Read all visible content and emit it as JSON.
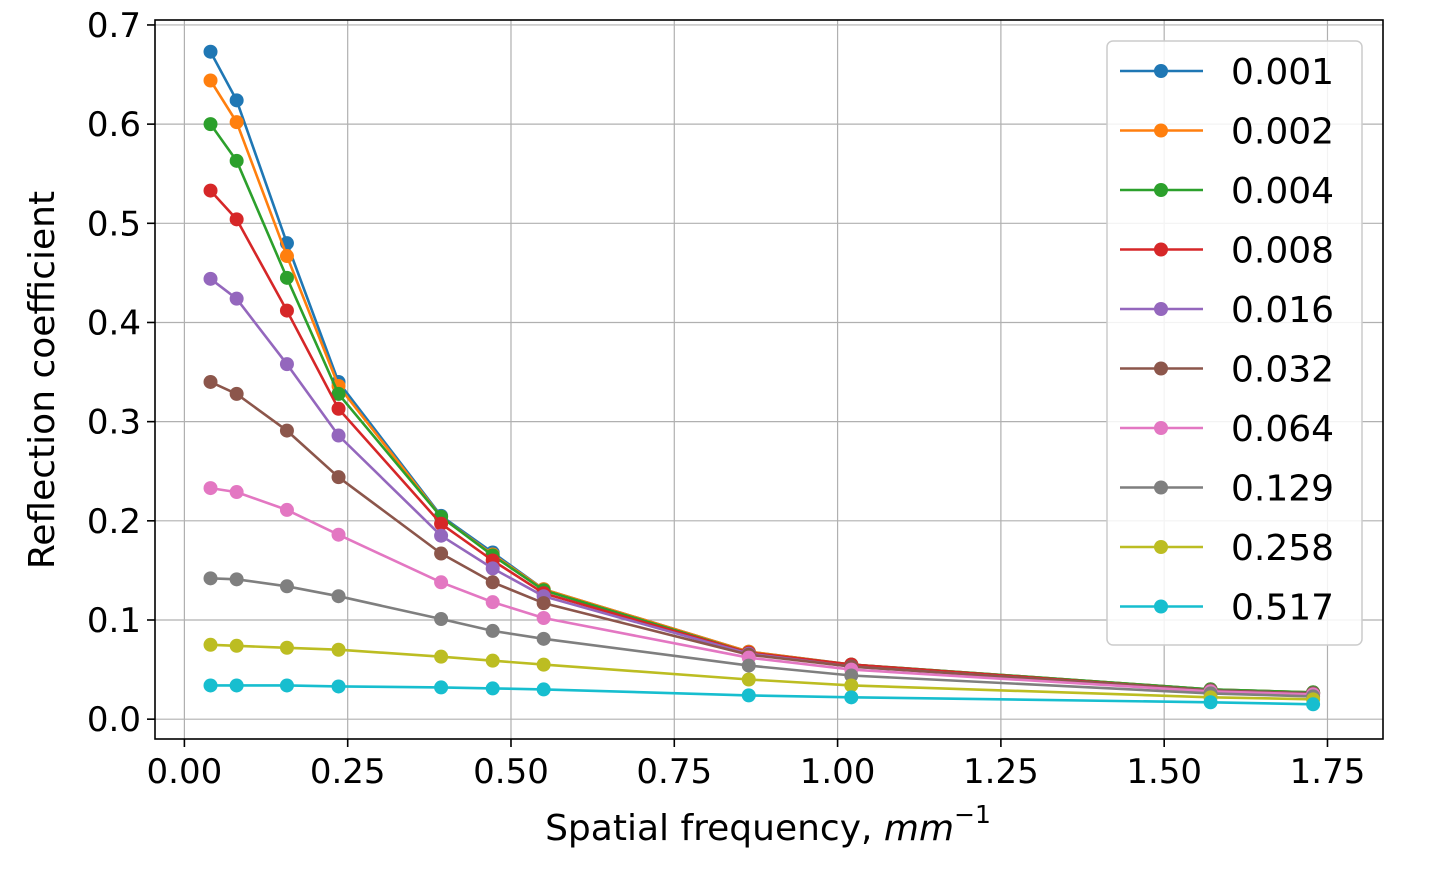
{
  "chart_data": {
    "type": "line",
    "title": "",
    "xlabel": "Spatial frequency, ",
    "xlabel_unit": "mm",
    "xlabel_unit_sup": "−1",
    "ylabel": "Reflection coefficient",
    "xlim": [
      -0.045,
      1.835
    ],
    "ylim": [
      -0.02,
      0.705
    ],
    "xticks": [
      0.0,
      0.25,
      0.5,
      0.75,
      1.0,
      1.25,
      1.5,
      1.75
    ],
    "xtick_labels": [
      "0.00",
      "0.25",
      "0.50",
      "0.75",
      "1.00",
      "1.25",
      "1.50",
      "1.75"
    ],
    "yticks": [
      0.0,
      0.1,
      0.2,
      0.3,
      0.4,
      0.5,
      0.6,
      0.7
    ],
    "ytick_labels": [
      "0.0",
      "0.1",
      "0.2",
      "0.3",
      "0.4",
      "0.5",
      "0.6",
      "0.7"
    ],
    "grid": true,
    "legend_position": "top-right",
    "x": [
      0.04,
      0.08,
      0.157,
      0.236,
      0.393,
      0.472,
      0.55,
      0.864,
      1.021,
      1.571,
      1.728
    ],
    "series": [
      {
        "name": "0.001",
        "color": "#1f77b4",
        "values": [
          0.673,
          0.624,
          0.48,
          0.34,
          0.205,
          0.168,
          0.131,
          0.068,
          0.055,
          0.03,
          0.027
        ]
      },
      {
        "name": "0.002",
        "color": "#ff7f0e",
        "values": [
          0.644,
          0.602,
          0.467,
          0.336,
          0.204,
          0.166,
          0.131,
          0.068,
          0.055,
          0.03,
          0.027
        ]
      },
      {
        "name": "0.004",
        "color": "#2ca02c",
        "values": [
          0.6,
          0.563,
          0.445,
          0.328,
          0.204,
          0.165,
          0.13,
          0.067,
          0.055,
          0.03,
          0.027
        ]
      },
      {
        "name": "0.008",
        "color": "#d62728",
        "values": [
          0.533,
          0.504,
          0.412,
          0.313,
          0.197,
          0.16,
          0.127,
          0.067,
          0.055,
          0.029,
          0.026
        ]
      },
      {
        "name": "0.016",
        "color": "#9467bd",
        "values": [
          0.444,
          0.424,
          0.358,
          0.286,
          0.185,
          0.152,
          0.124,
          0.066,
          0.053,
          0.029,
          0.026
        ]
      },
      {
        "name": "0.032",
        "color": "#8c564b",
        "values": [
          0.34,
          0.328,
          0.291,
          0.244,
          0.167,
          0.138,
          0.117,
          0.065,
          0.053,
          0.029,
          0.026
        ]
      },
      {
        "name": "0.064",
        "color": "#e377c2",
        "values": [
          0.233,
          0.229,
          0.211,
          0.186,
          0.138,
          0.118,
          0.102,
          0.062,
          0.05,
          0.028,
          0.025
        ]
      },
      {
        "name": "0.129",
        "color": "#7f7f7f",
        "values": [
          0.142,
          0.141,
          0.134,
          0.124,
          0.101,
          0.089,
          0.081,
          0.054,
          0.044,
          0.026,
          0.023
        ]
      },
      {
        "name": "0.258",
        "color": "#bcbd22",
        "values": [
          0.075,
          0.074,
          0.072,
          0.07,
          0.063,
          0.059,
          0.055,
          0.04,
          0.034,
          0.022,
          0.02
        ]
      },
      {
        "name": "0.517",
        "color": "#17becf",
        "values": [
          0.034,
          0.034,
          0.034,
          0.033,
          0.032,
          0.031,
          0.03,
          0.024,
          0.022,
          0.017,
          0.015
        ]
      }
    ]
  }
}
